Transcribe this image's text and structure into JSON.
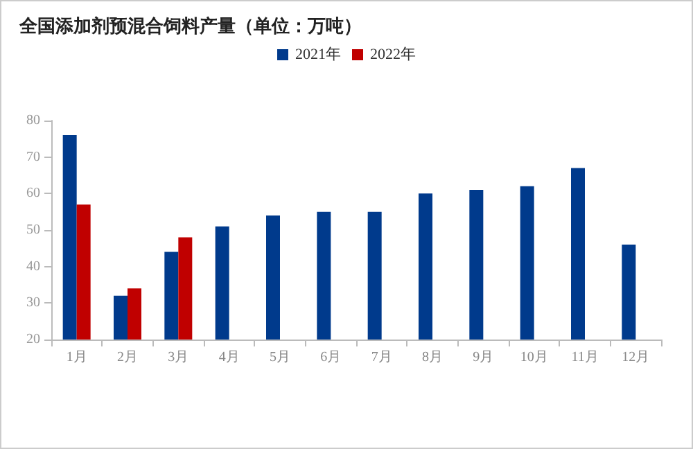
{
  "chart_data": {
    "type": "bar",
    "title": "全国添加剂预混合饲料产量（单位：万吨）",
    "categories": [
      "1月",
      "2月",
      "3月",
      "4月",
      "5月",
      "6月",
      "7月",
      "8月",
      "9月",
      "10月",
      "11月",
      "12月"
    ],
    "series": [
      {
        "name": "2021年",
        "color": "#003a8c",
        "values": [
          76,
          32,
          44,
          51,
          54,
          55,
          55,
          60,
          61,
          62,
          67,
          46
        ]
      },
      {
        "name": "2022年",
        "color": "#c00000",
        "values": [
          57,
          34,
          48,
          null,
          null,
          null,
          null,
          null,
          null,
          null,
          null,
          null
        ]
      }
    ],
    "ylim": [
      20,
      80
    ],
    "yticks": [
      20,
      30,
      40,
      50,
      60,
      70,
      80
    ],
    "grid": false,
    "legend": "top"
  }
}
